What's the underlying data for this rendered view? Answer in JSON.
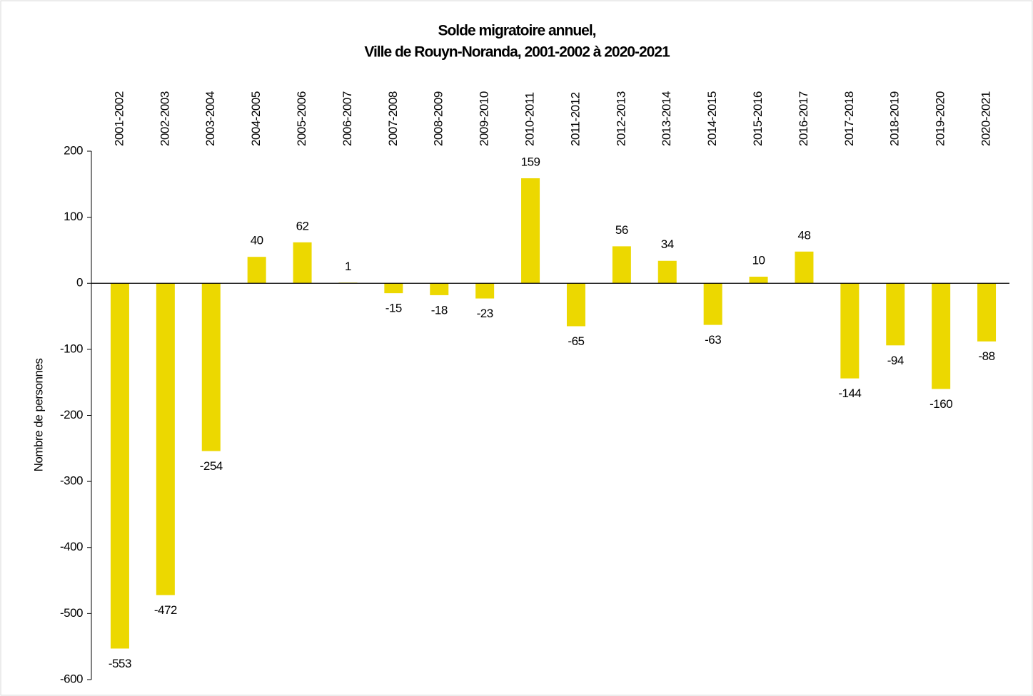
{
  "chart_data": {
    "type": "bar",
    "title": [
      "Solde migratoire annuel,",
      "Ville de Rouyn-Noranda, 2001-2002 à 2020-2021"
    ],
    "y_label": "Nombre de personnes",
    "categories": [
      "2001-2002",
      "2002-2003",
      "2003-2004",
      "2004-2005",
      "2005-2006",
      "2006-2007",
      "2007-2008",
      "2008-2009",
      "2009-2010",
      "2010-2011",
      "2011-2012",
      "2012-2013",
      "2013-2014",
      "2014-2015",
      "2015-2016",
      "2016-2017",
      "2017-2018",
      "2018-2019",
      "2019-2020",
      "2020-2021"
    ],
    "values": [
      -553,
      -472,
      -254,
      40,
      62,
      1,
      -15,
      -18,
      -23,
      159,
      -65,
      56,
      34,
      -63,
      10,
      48,
      -144,
      -94,
      -160,
      -88
    ],
    "color": "#ecd800",
    "ylim": [
      -600,
      200
    ],
    "yticks": [
      -600,
      -500,
      -400,
      -300,
      -200,
      -100,
      0,
      100,
      200
    ],
    "grid": false
  }
}
